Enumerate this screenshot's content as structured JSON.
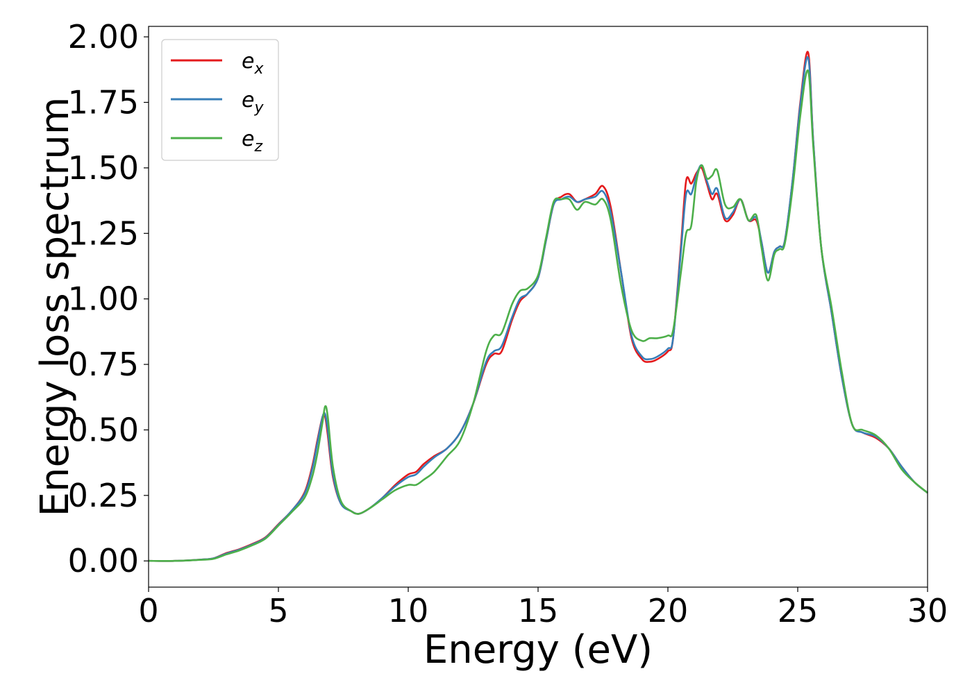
{
  "chart_data": {
    "type": "line",
    "title": "",
    "xlabel": "Energy (eV)",
    "ylabel": "Energy loss spectrum",
    "xlim": [
      0,
      30
    ],
    "ylim": [
      -0.1,
      2.04
    ],
    "xticks": [
      0,
      5,
      10,
      15,
      20,
      25,
      30
    ],
    "xtick_labels": [
      "0",
      "5",
      "10",
      "15",
      "20",
      "25",
      "30"
    ],
    "yticks": [
      0.0,
      0.25,
      0.5,
      0.75,
      1.0,
      1.25,
      1.5,
      1.75,
      2.0
    ],
    "ytick_labels": [
      "0.00",
      "0.25",
      "0.50",
      "0.75",
      "1.00",
      "1.25",
      "1.50",
      "1.75",
      "2.00"
    ],
    "grid": false,
    "legend_position": "top-left",
    "series": [
      {
        "name": "e",
        "subscript": "x",
        "color": "#e41a1c",
        "points": [
          [
            0,
            0.0
          ],
          [
            1,
            0.0
          ],
          [
            2,
            0.005
          ],
          [
            2.5,
            0.01
          ],
          [
            3,
            0.03
          ],
          [
            3.5,
            0.045
          ],
          [
            4,
            0.065
          ],
          [
            4.5,
            0.09
          ],
          [
            5,
            0.14
          ],
          [
            5.5,
            0.19
          ],
          [
            6,
            0.26
          ],
          [
            6.3,
            0.36
          ],
          [
            6.5,
            0.46
          ],
          [
            6.7,
            0.55
          ],
          [
            6.8,
            0.55
          ],
          [
            6.9,
            0.48
          ],
          [
            7.1,
            0.32
          ],
          [
            7.4,
            0.22
          ],
          [
            7.8,
            0.19
          ],
          [
            8.1,
            0.18
          ],
          [
            8.5,
            0.2
          ],
          [
            9,
            0.24
          ],
          [
            9.5,
            0.29
          ],
          [
            10,
            0.33
          ],
          [
            10.3,
            0.34
          ],
          [
            10.6,
            0.37
          ],
          [
            11,
            0.4
          ],
          [
            11.5,
            0.43
          ],
          [
            12,
            0.49
          ],
          [
            12.5,
            0.6
          ],
          [
            13,
            0.75
          ],
          [
            13.3,
            0.79
          ],
          [
            13.6,
            0.8
          ],
          [
            14,
            0.92
          ],
          [
            14.3,
            0.99
          ],
          [
            14.6,
            1.02
          ],
          [
            15,
            1.08
          ],
          [
            15.3,
            1.22
          ],
          [
            15.6,
            1.36
          ],
          [
            15.9,
            1.39
          ],
          [
            16.2,
            1.4
          ],
          [
            16.5,
            1.37
          ],
          [
            16.8,
            1.38
          ],
          [
            17.2,
            1.4
          ],
          [
            17.5,
            1.43
          ],
          [
            17.8,
            1.35
          ],
          [
            18.2,
            1.1
          ],
          [
            18.6,
            0.85
          ],
          [
            19,
            0.77
          ],
          [
            19.3,
            0.76
          ],
          [
            19.6,
            0.77
          ],
          [
            20,
            0.8
          ],
          [
            20.2,
            0.85
          ],
          [
            20.5,
            1.2
          ],
          [
            20.7,
            1.45
          ],
          [
            20.9,
            1.44
          ],
          [
            21.1,
            1.48
          ],
          [
            21.3,
            1.5
          ],
          [
            21.5,
            1.44
          ],
          [
            21.7,
            1.38
          ],
          [
            21.9,
            1.4
          ],
          [
            22.2,
            1.3
          ],
          [
            22.5,
            1.32
          ],
          [
            22.8,
            1.38
          ],
          [
            23.1,
            1.3
          ],
          [
            23.4,
            1.3
          ],
          [
            23.6,
            1.22
          ],
          [
            23.85,
            1.1
          ],
          [
            24.1,
            1.18
          ],
          [
            24.3,
            1.2
          ],
          [
            24.5,
            1.22
          ],
          [
            24.8,
            1.45
          ],
          [
            25.1,
            1.75
          ],
          [
            25.4,
            1.94
          ],
          [
            25.6,
            1.6
          ],
          [
            25.9,
            1.2
          ],
          [
            26.3,
            0.95
          ],
          [
            26.7,
            0.7
          ],
          [
            27.1,
            0.52
          ],
          [
            27.5,
            0.49
          ],
          [
            28,
            0.47
          ],
          [
            28.5,
            0.43
          ],
          [
            29,
            0.36
          ],
          [
            29.5,
            0.3
          ],
          [
            30,
            0.26
          ]
        ]
      },
      {
        "name": "e",
        "subscript": "y",
        "color": "#377eb8",
        "points": [
          [
            0,
            0.0
          ],
          [
            1,
            0.0
          ],
          [
            2,
            0.005
          ],
          [
            2.5,
            0.01
          ],
          [
            3,
            0.028
          ],
          [
            3.5,
            0.043
          ],
          [
            4,
            0.063
          ],
          [
            4.5,
            0.088
          ],
          [
            5,
            0.138
          ],
          [
            5.5,
            0.19
          ],
          [
            6,
            0.255
          ],
          [
            6.3,
            0.35
          ],
          [
            6.5,
            0.45
          ],
          [
            6.7,
            0.55
          ],
          [
            6.8,
            0.56
          ],
          [
            6.9,
            0.5
          ],
          [
            7.1,
            0.33
          ],
          [
            7.4,
            0.22
          ],
          [
            7.8,
            0.19
          ],
          [
            8.1,
            0.18
          ],
          [
            8.5,
            0.2
          ],
          [
            9,
            0.24
          ],
          [
            9.5,
            0.285
          ],
          [
            10,
            0.32
          ],
          [
            10.3,
            0.33
          ],
          [
            10.6,
            0.36
          ],
          [
            11,
            0.395
          ],
          [
            11.5,
            0.43
          ],
          [
            12,
            0.49
          ],
          [
            12.5,
            0.6
          ],
          [
            13,
            0.76
          ],
          [
            13.3,
            0.8
          ],
          [
            13.6,
            0.82
          ],
          [
            14,
            0.93
          ],
          [
            14.3,
            1.0
          ],
          [
            14.6,
            1.02
          ],
          [
            15,
            1.08
          ],
          [
            15.3,
            1.22
          ],
          [
            15.6,
            1.36
          ],
          [
            15.9,
            1.38
          ],
          [
            16.2,
            1.39
          ],
          [
            16.5,
            1.37
          ],
          [
            16.8,
            1.38
          ],
          [
            17.2,
            1.39
          ],
          [
            17.5,
            1.41
          ],
          [
            17.8,
            1.33
          ],
          [
            18.2,
            1.1
          ],
          [
            18.6,
            0.86
          ],
          [
            19,
            0.78
          ],
          [
            19.3,
            0.77
          ],
          [
            19.6,
            0.78
          ],
          [
            20,
            0.81
          ],
          [
            20.2,
            0.85
          ],
          [
            20.5,
            1.18
          ],
          [
            20.7,
            1.4
          ],
          [
            20.9,
            1.4
          ],
          [
            21.1,
            1.47
          ],
          [
            21.3,
            1.51
          ],
          [
            21.5,
            1.45
          ],
          [
            21.7,
            1.4
          ],
          [
            21.9,
            1.42
          ],
          [
            22.2,
            1.31
          ],
          [
            22.5,
            1.33
          ],
          [
            22.8,
            1.38
          ],
          [
            23.1,
            1.3
          ],
          [
            23.4,
            1.31
          ],
          [
            23.6,
            1.22
          ],
          [
            23.85,
            1.1
          ],
          [
            24.1,
            1.18
          ],
          [
            24.3,
            1.2
          ],
          [
            24.5,
            1.22
          ],
          [
            24.8,
            1.45
          ],
          [
            25.1,
            1.74
          ],
          [
            25.4,
            1.92
          ],
          [
            25.6,
            1.6
          ],
          [
            25.9,
            1.2
          ],
          [
            26.3,
            0.95
          ],
          [
            26.7,
            0.7
          ],
          [
            27.1,
            0.52
          ],
          [
            27.5,
            0.49
          ],
          [
            28,
            0.475
          ],
          [
            28.5,
            0.43
          ],
          [
            29,
            0.36
          ],
          [
            29.5,
            0.3
          ],
          [
            30,
            0.26
          ]
        ]
      },
      {
        "name": "e",
        "subscript": "z",
        "color": "#4daf4a",
        "points": [
          [
            0,
            0.0
          ],
          [
            1,
            0.0
          ],
          [
            2,
            0.004
          ],
          [
            2.5,
            0.008
          ],
          [
            3,
            0.025
          ],
          [
            3.5,
            0.04
          ],
          [
            4,
            0.06
          ],
          [
            4.5,
            0.085
          ],
          [
            5,
            0.135
          ],
          [
            5.5,
            0.185
          ],
          [
            6,
            0.24
          ],
          [
            6.3,
            0.32
          ],
          [
            6.5,
            0.41
          ],
          [
            6.7,
            0.53
          ],
          [
            6.8,
            0.59
          ],
          [
            6.9,
            0.55
          ],
          [
            7.1,
            0.36
          ],
          [
            7.4,
            0.23
          ],
          [
            7.8,
            0.19
          ],
          [
            8.1,
            0.18
          ],
          [
            8.5,
            0.2
          ],
          [
            9,
            0.235
          ],
          [
            9.5,
            0.27
          ],
          [
            10,
            0.29
          ],
          [
            10.3,
            0.29
          ],
          [
            10.6,
            0.31
          ],
          [
            11,
            0.34
          ],
          [
            11.5,
            0.4
          ],
          [
            12,
            0.46
          ],
          [
            12.5,
            0.6
          ],
          [
            13,
            0.8
          ],
          [
            13.3,
            0.86
          ],
          [
            13.6,
            0.87
          ],
          [
            14,
            0.98
          ],
          [
            14.3,
            1.03
          ],
          [
            14.6,
            1.04
          ],
          [
            15,
            1.09
          ],
          [
            15.3,
            1.23
          ],
          [
            15.6,
            1.37
          ],
          [
            15.9,
            1.38
          ],
          [
            16.2,
            1.38
          ],
          [
            16.5,
            1.34
          ],
          [
            16.8,
            1.37
          ],
          [
            17.2,
            1.36
          ],
          [
            17.5,
            1.38
          ],
          [
            17.8,
            1.3
          ],
          [
            18.2,
            1.05
          ],
          [
            18.6,
            0.88
          ],
          [
            19,
            0.84
          ],
          [
            19.3,
            0.85
          ],
          [
            19.6,
            0.85
          ],
          [
            20,
            0.86
          ],
          [
            20.2,
            0.88
          ],
          [
            20.5,
            1.1
          ],
          [
            20.7,
            1.25
          ],
          [
            20.9,
            1.28
          ],
          [
            21.1,
            1.45
          ],
          [
            21.3,
            1.51
          ],
          [
            21.5,
            1.46
          ],
          [
            21.7,
            1.47
          ],
          [
            21.9,
            1.49
          ],
          [
            22.2,
            1.36
          ],
          [
            22.5,
            1.35
          ],
          [
            22.8,
            1.38
          ],
          [
            23.1,
            1.3
          ],
          [
            23.4,
            1.32
          ],
          [
            23.6,
            1.2
          ],
          [
            23.85,
            1.07
          ],
          [
            24.1,
            1.17
          ],
          [
            24.3,
            1.19
          ],
          [
            24.5,
            1.21
          ],
          [
            24.8,
            1.42
          ],
          [
            25.1,
            1.7
          ],
          [
            25.4,
            1.87
          ],
          [
            25.6,
            1.58
          ],
          [
            25.9,
            1.2
          ],
          [
            26.3,
            0.97
          ],
          [
            26.7,
            0.72
          ],
          [
            27.1,
            0.52
          ],
          [
            27.5,
            0.5
          ],
          [
            28,
            0.48
          ],
          [
            28.5,
            0.43
          ],
          [
            29,
            0.35
          ],
          [
            29.5,
            0.3
          ],
          [
            30,
            0.26
          ]
        ]
      }
    ]
  }
}
